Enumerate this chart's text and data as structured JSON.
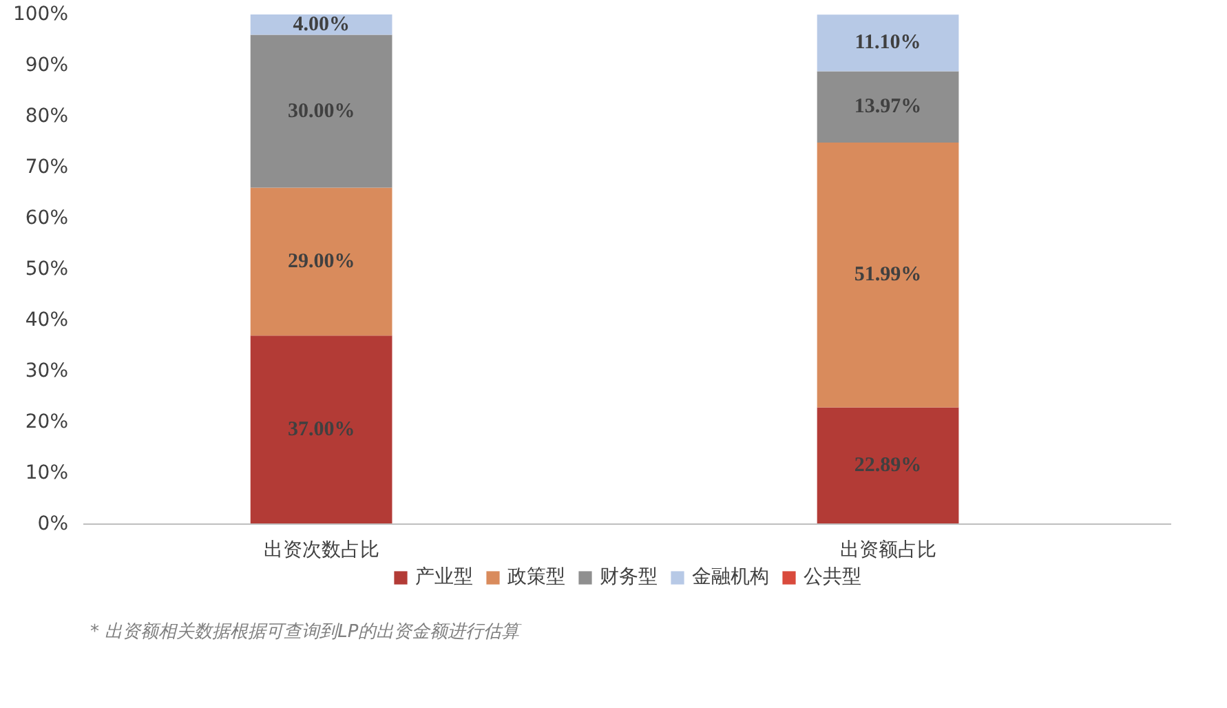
{
  "chart_data": {
    "type": "bar",
    "stacked": true,
    "categories": [
      "出资次数占比",
      "出资额占比"
    ],
    "series": [
      {
        "name": "产业型",
        "color": "#b33b36",
        "values": [
          37.0,
          22.89
        ],
        "value_labels": [
          "37.00%",
          "22.89%"
        ]
      },
      {
        "name": "政策型",
        "color": "#d98b5c",
        "values": [
          29.0,
          51.99
        ],
        "value_labels": [
          "29.00%",
          "51.99%"
        ]
      },
      {
        "name": "财务型",
        "color": "#8f8f8f",
        "values": [
          30.0,
          13.97
        ],
        "value_labels": [
          "30.00%",
          "13.97%"
        ]
      },
      {
        "name": "金融机构",
        "color": "#b7c9e6",
        "values": [
          4.0,
          11.1
        ],
        "value_labels": [
          "4.00%",
          "11.10%"
        ]
      },
      {
        "name": "公共型",
        "color": "#d94a3c",
        "values": [
          null,
          null
        ]
      }
    ],
    "ylim": [
      0,
      100
    ],
    "yticks": [
      {
        "value": 0,
        "label": "0%"
      },
      {
        "value": 10,
        "label": "10%"
      },
      {
        "value": 20,
        "label": "20%"
      },
      {
        "value": 30,
        "label": "30%"
      },
      {
        "value": 40,
        "label": "40%"
      },
      {
        "value": 50,
        "label": "50%"
      },
      {
        "value": 60,
        "label": "60%"
      },
      {
        "value": 70,
        "label": "70%"
      },
      {
        "value": 80,
        "label": "80%"
      },
      {
        "value": 90,
        "label": "90%"
      },
      {
        "value": 100,
        "label": "100%"
      }
    ],
    "grid": false,
    "legend": "bottom",
    "annotations": [
      "* 出资额相关数据根据可查询到LP的出资金额进行估算"
    ]
  }
}
